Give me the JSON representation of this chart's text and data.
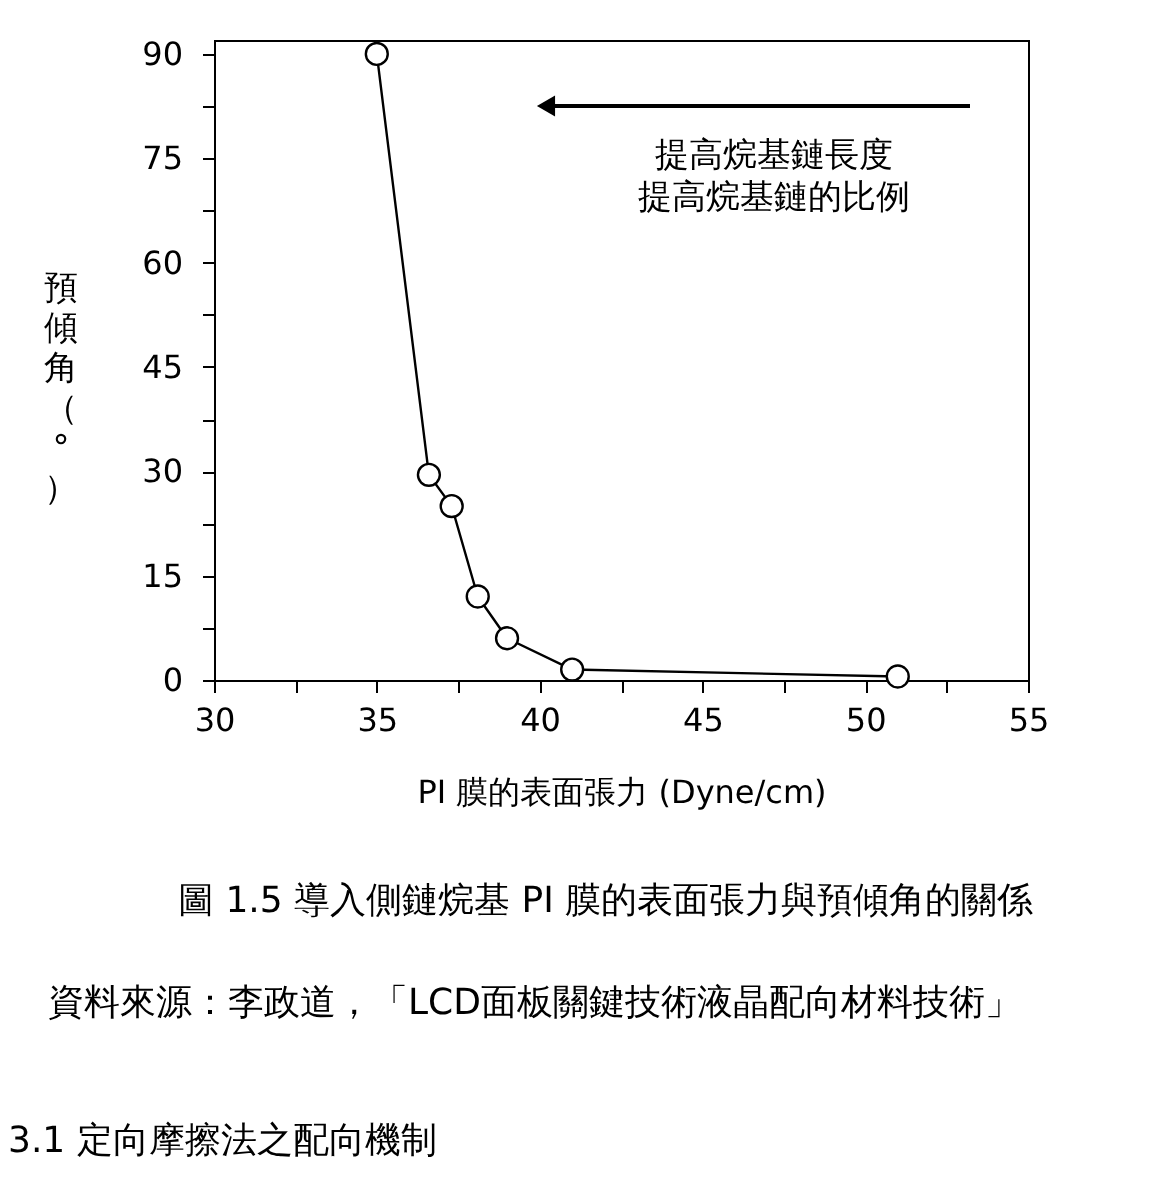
{
  "chart_data": {
    "type": "line",
    "xlabel": "PI 膜的表面張力 (Dyne/cm)",
    "ylabel": "預傾角（°）",
    "annotations": [
      "提高烷基鏈長度",
      "提高烷基鏈的比例",
      "圖 1.5 導入側鏈烷基 PI 膜的表面張力與預傾角的關係",
      "資料來源：李政道，「LCD面板關鍵技術液晶配向材料技術」",
      "3.1 定向摩擦法之配向機制"
    ],
    "x": [
      35,
      36.6,
      37.3,
      38.1,
      39,
      41,
      51
    ],
    "series": [
      {
        "color": "#000000",
        "values": [
          90,
          29.5,
          25,
          12,
          6,
          1.5,
          0.5
        ]
      }
    ],
    "xlim": [
      30,
      55
    ],
    "ylim": [
      0,
      92
    ],
    "xticks": [
      30,
      {
        "value": 32.5,
        "label": null
      },
      35,
      {
        "value": 37.5,
        "label": null
      },
      40,
      {
        "value": 42.5,
        "label": null
      },
      45,
      {
        "value": 47.5,
        "label": null
      },
      50,
      {
        "value": 52.5,
        "label": null
      },
      55
    ],
    "yticks": [
      0,
      {
        "value": 7.5,
        "label": null
      },
      15,
      {
        "value": 22.5,
        "label": null
      },
      30,
      {
        "value": 37.5,
        "label": null
      },
      45,
      {
        "value": 52.5,
        "label": null
      },
      60,
      {
        "value": 67.5,
        "label": null
      },
      75,
      {
        "value": 82.5,
        "label": null
      },
      90
    ],
    "grid": false,
    "marker": "circle",
    "line_style": "solid"
  }
}
